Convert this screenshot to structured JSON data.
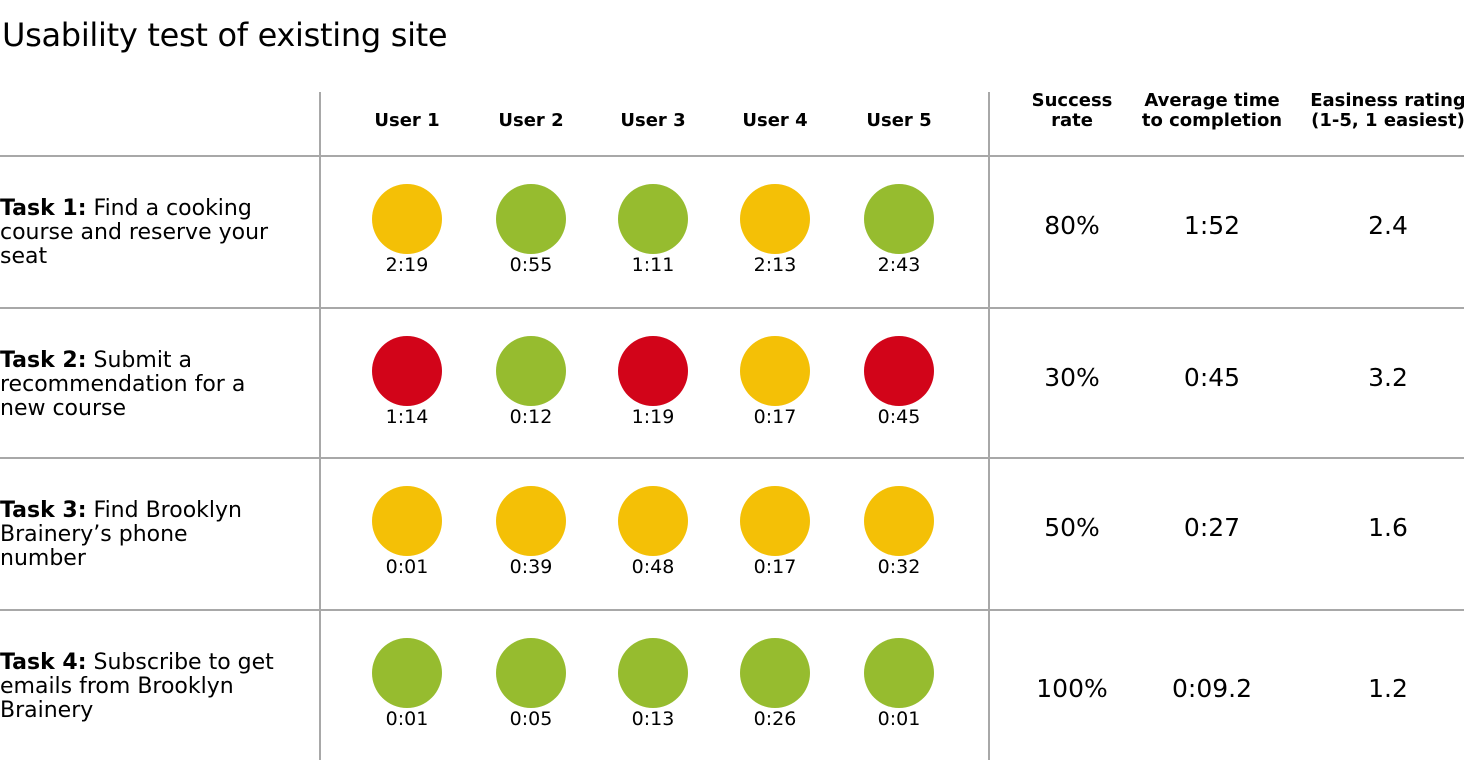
{
  "title": "Usability test of existing site",
  "colors": {
    "success": "#96bc2f",
    "partial": "#f4c006",
    "fail": "#d20419",
    "grid": "#a8a8a8"
  },
  "users": [
    "User 1",
    "User 2",
    "User 3",
    "User 4",
    "User 5"
  ],
  "metric_headers": {
    "success_rate": [
      "Success",
      "rate"
    ],
    "avg_time": [
      "Average time",
      "to completion"
    ],
    "easiness": [
      "Easiness rating",
      "(1-5, 1 easiest)"
    ]
  },
  "tasks": [
    {
      "label_bold": "Task 1:",
      "label_lines": [
        "Find a cooking",
        "course and reserve your",
        "seat"
      ],
      "results": [
        {
          "status": "partial",
          "time": "2:19"
        },
        {
          "status": "success",
          "time": "0:55"
        },
        {
          "status": "success",
          "time": "1:11"
        },
        {
          "status": "partial",
          "time": "2:13"
        },
        {
          "status": "success",
          "time": "2:43"
        }
      ],
      "success_rate": "80%",
      "avg_time": "1:52",
      "easiness": "2.4"
    },
    {
      "label_bold": "Task 2:",
      "label_lines": [
        "Submit a",
        "recommendation for a",
        "new course"
      ],
      "results": [
        {
          "status": "fail",
          "time": "1:14"
        },
        {
          "status": "success",
          "time": "0:12"
        },
        {
          "status": "fail",
          "time": "1:19"
        },
        {
          "status": "partial",
          "time": "0:17"
        },
        {
          "status": "fail",
          "time": "0:45"
        }
      ],
      "success_rate": "30%",
      "avg_time": "0:45",
      "easiness": "3.2"
    },
    {
      "label_bold": "Task 3:",
      "label_lines": [
        "Find Brooklyn",
        "Brainery’s phone",
        "number"
      ],
      "results": [
        {
          "status": "partial",
          "time": "0:01"
        },
        {
          "status": "partial",
          "time": "0:39"
        },
        {
          "status": "partial",
          "time": "0:48"
        },
        {
          "status": "partial",
          "time": "0:17"
        },
        {
          "status": "partial",
          "time": "0:32"
        }
      ],
      "success_rate": "50%",
      "avg_time": "0:27",
      "easiness": "1.6"
    },
    {
      "label_bold": "Task 4:",
      "label_lines": [
        "Subscribe to get",
        "emails from Brooklyn",
        "Brainery"
      ],
      "results": [
        {
          "status": "success",
          "time": "0:01"
        },
        {
          "status": "success",
          "time": "0:05"
        },
        {
          "status": "success",
          "time": "0:13"
        },
        {
          "status": "success",
          "time": "0:26"
        },
        {
          "status": "success",
          "time": "0:01"
        }
      ],
      "success_rate": "100%",
      "avg_time": "0:09.2",
      "easiness": "1.2"
    }
  ]
}
